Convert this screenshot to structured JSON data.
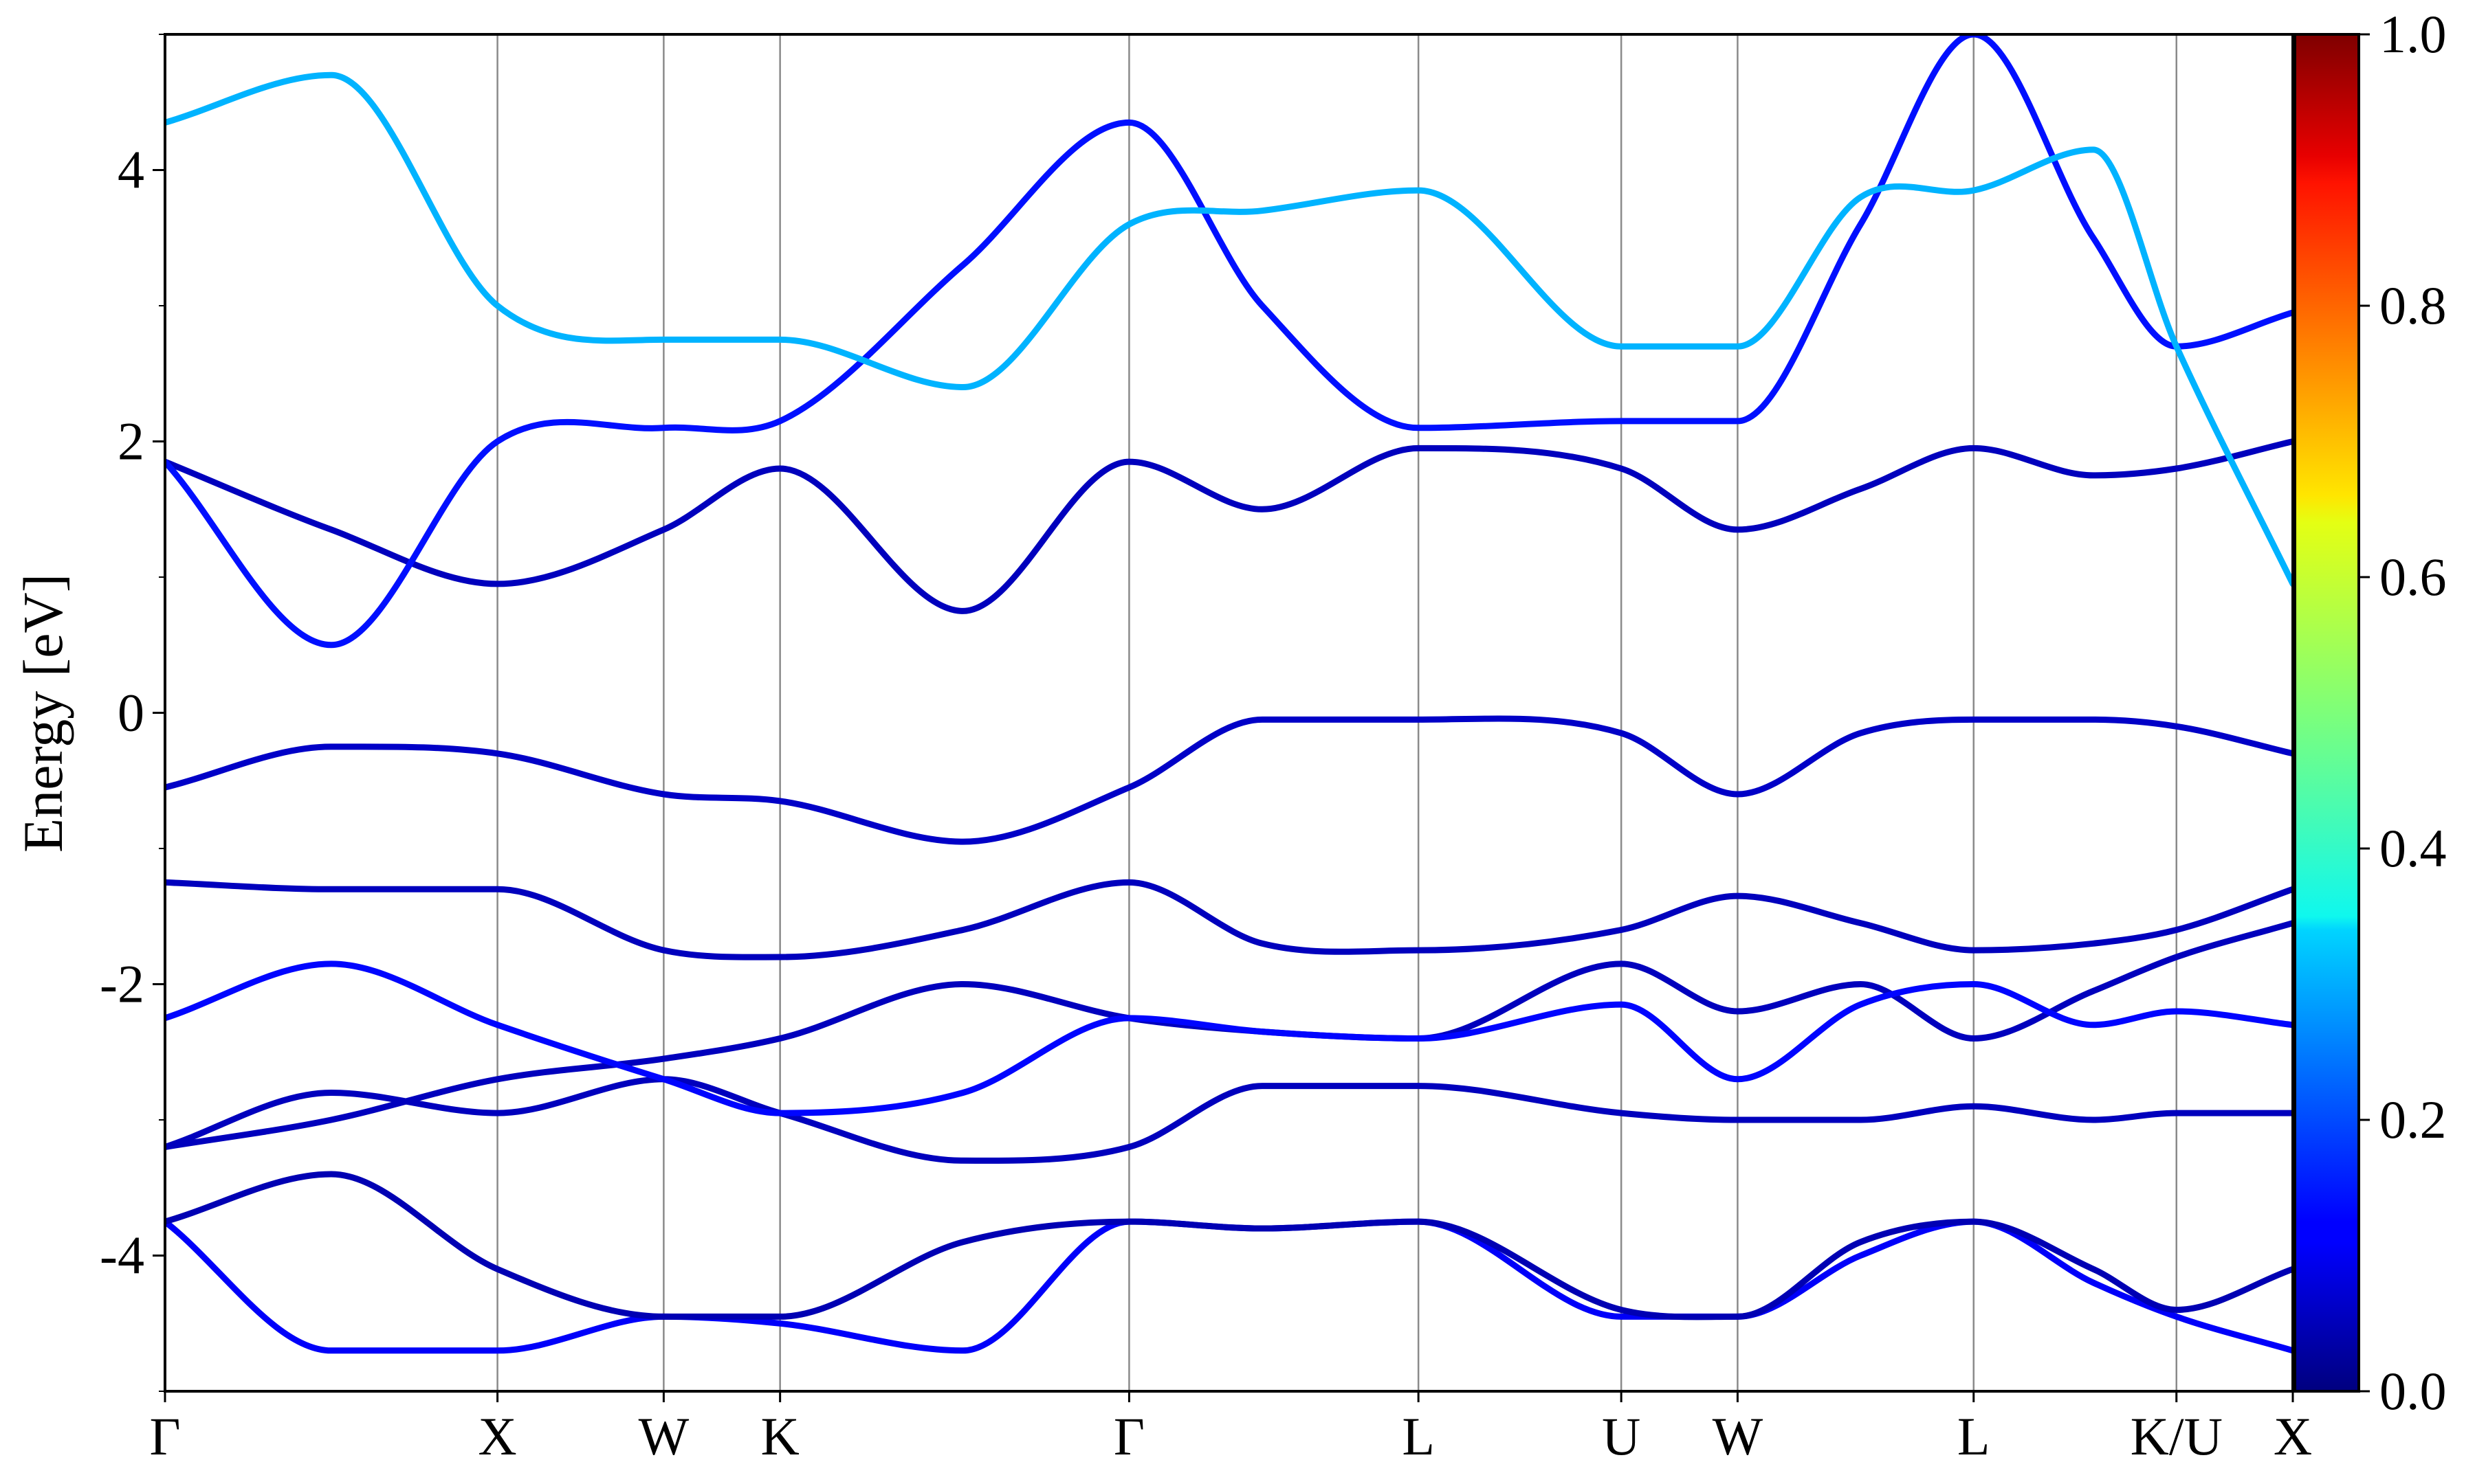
{
  "chart_data": {
    "type": "line",
    "title": "",
    "xlabel": "",
    "ylabel": "Energy [eV]",
    "ylim": [
      -5,
      5
    ],
    "yticks": [
      -4,
      -2,
      0,
      2,
      4
    ],
    "ytick_labels": [
      "-4",
      "-2",
      "0",
      "2",
      "4"
    ],
    "xlim": [
      0,
      6.4
    ],
    "kpoints": [
      {
        "label": "Γ",
        "x": 0.0
      },
      {
        "label": "X",
        "x": 1.0
      },
      {
        "label": "W",
        "x": 1.5
      },
      {
        "label": "K",
        "x": 1.85
      },
      {
        "label": "Γ",
        "x": 2.9
      },
      {
        "label": "L",
        "x": 3.77
      },
      {
        "label": "U",
        "x": 4.38
      },
      {
        "label": "W",
        "x": 4.73
      },
      {
        "label": "L",
        "x": 5.44
      },
      {
        "label": "K/U",
        "x": 6.05
      },
      {
        "label": "X",
        "x": 6.4
      }
    ],
    "colorbar": {
      "min": 0.0,
      "max": 1.0,
      "ticks": [
        0.0,
        0.2,
        0.4,
        0.6,
        0.8,
        1.0
      ],
      "tick_labels": [
        "0.0",
        "0.2",
        "0.4",
        "0.6",
        "0.8",
        "1.0"
      ],
      "colormap": "jet"
    },
    "grid": "vertical lines at high-symmetry points",
    "series": [
      {
        "x": [
          0,
          0.5,
          1.0,
          1.5,
          1.85,
          2.4,
          2.9,
          3.3,
          3.77,
          4.38,
          4.73,
          5.1,
          5.44,
          5.8,
          6.05,
          6.4
        ],
        "y": [
          -3.75,
          -4.7,
          -4.7,
          -4.45,
          -4.5,
          -4.7,
          -3.75,
          -3.8,
          -3.75,
          -4.45,
          -4.45,
          -4.0,
          -3.75,
          -4.2,
          -4.45,
          -4.7
        ],
        "weight": 0.12
      },
      {
        "x": [
          0,
          0.5,
          1.0,
          1.5,
          1.85,
          2.4,
          2.9,
          3.3,
          3.77,
          4.38,
          4.73,
          5.1,
          5.44,
          5.8,
          6.05,
          6.4
        ],
        "y": [
          -3.75,
          -3.4,
          -4.1,
          -4.45,
          -4.45,
          -3.9,
          -3.75,
          -3.8,
          -3.75,
          -4.4,
          -4.45,
          -3.9,
          -3.75,
          -4.1,
          -4.4,
          -4.1
        ],
        "weight": 0.05
      },
      {
        "x": [
          0,
          0.5,
          1.0,
          1.5,
          1.85,
          2.4,
          2.9,
          3.3,
          3.77,
          4.38,
          4.73,
          5.1,
          5.44,
          5.8,
          6.05,
          6.4
        ],
        "y": [
          -3.2,
          -2.8,
          -2.95,
          -2.7,
          -2.95,
          -3.3,
          -3.2,
          -2.75,
          -2.75,
          -2.95,
          -3.0,
          -3.0,
          -2.9,
          -3.0,
          -2.95,
          -2.95
        ],
        "weight": 0.06
      },
      {
        "x": [
          0,
          0.5,
          1.0,
          1.5,
          1.85,
          2.4,
          2.9,
          3.3,
          3.77,
          4.38,
          4.73,
          5.1,
          5.44,
          5.8,
          6.05,
          6.4
        ],
        "y": [
          -3.2,
          -3.0,
          -2.7,
          -2.55,
          -2.4,
          -2.0,
          -2.25,
          -2.35,
          -2.4,
          -1.85,
          -2.2,
          -2.0,
          -2.4,
          -2.05,
          -1.8,
          -1.55
        ],
        "weight": 0.06
      },
      {
        "x": [
          0,
          0.5,
          1.0,
          1.5,
          1.85,
          2.4,
          2.9,
          3.3,
          3.77,
          4.38,
          4.73,
          5.1,
          5.44,
          5.8,
          6.05,
          6.4
        ],
        "y": [
          -2.25,
          -1.85,
          -2.3,
          -2.7,
          -2.95,
          -2.8,
          -2.25,
          -2.35,
          -2.4,
          -2.15,
          -2.7,
          -2.15,
          -2.0,
          -2.3,
          -2.2,
          -2.3
        ],
        "weight": 0.13
      },
      {
        "x": [
          0,
          0.5,
          1.0,
          1.5,
          1.85,
          2.4,
          2.9,
          3.3,
          3.77,
          4.38,
          4.73,
          5.1,
          5.44,
          5.8,
          6.05,
          6.4
        ],
        "y": [
          -1.25,
          -1.3,
          -1.3,
          -1.75,
          -1.8,
          -1.6,
          -1.25,
          -1.7,
          -1.75,
          -1.6,
          -1.35,
          -1.55,
          -1.75,
          -1.7,
          -1.6,
          -1.3
        ],
        "weight": 0.06
      },
      {
        "x": [
          0,
          0.5,
          1.0,
          1.5,
          1.85,
          2.4,
          2.9,
          3.3,
          3.77,
          4.38,
          4.73,
          5.1,
          5.44,
          5.8,
          6.05,
          6.4
        ],
        "y": [
          -0.55,
          -0.25,
          -0.3,
          -0.6,
          -0.65,
          -0.95,
          -0.55,
          -0.05,
          -0.05,
          -0.15,
          -0.6,
          -0.15,
          -0.05,
          -0.05,
          -0.1,
          -0.3
        ],
        "weight": 0.07
      },
      {
        "x": [
          0,
          0.5,
          1.0,
          1.5,
          1.85,
          2.4,
          2.9,
          3.3,
          3.77,
          4.38,
          4.73,
          5.1,
          5.44,
          5.8,
          6.05,
          6.4
        ],
        "y": [
          1.85,
          1.35,
          0.95,
          1.35,
          1.8,
          0.75,
          1.85,
          1.5,
          1.95,
          1.8,
          1.35,
          1.65,
          1.95,
          1.75,
          1.8,
          2.0
        ],
        "weight": 0.06
      },
      {
        "x": [
          0,
          0.5,
          1.0,
          1.5,
          1.85,
          2.4,
          2.9,
          3.3,
          3.77,
          4.38,
          4.73,
          5.1,
          5.44,
          5.8,
          6.05,
          6.4
        ],
        "y": [
          1.85,
          0.5,
          2.0,
          2.1,
          2.15,
          3.3,
          4.35,
          3.0,
          2.1,
          2.15,
          2.15,
          3.6,
          5.0,
          3.5,
          2.7,
          2.95
        ],
        "weight": 0.14
      },
      {
        "x": [
          0,
          0.5,
          1.0,
          1.5,
          1.85,
          2.4,
          2.9,
          3.3,
          3.77,
          4.38,
          4.73,
          5.1,
          5.44,
          5.8,
          6.05,
          6.4
        ],
        "y": [
          4.35,
          4.7,
          3.0,
          2.75,
          2.75,
          2.4,
          3.6,
          3.7,
          3.85,
          2.7,
          2.7,
          3.8,
          3.85,
          4.15,
          2.7,
          0.95
        ],
        "weight": 0.3
      }
    ]
  }
}
